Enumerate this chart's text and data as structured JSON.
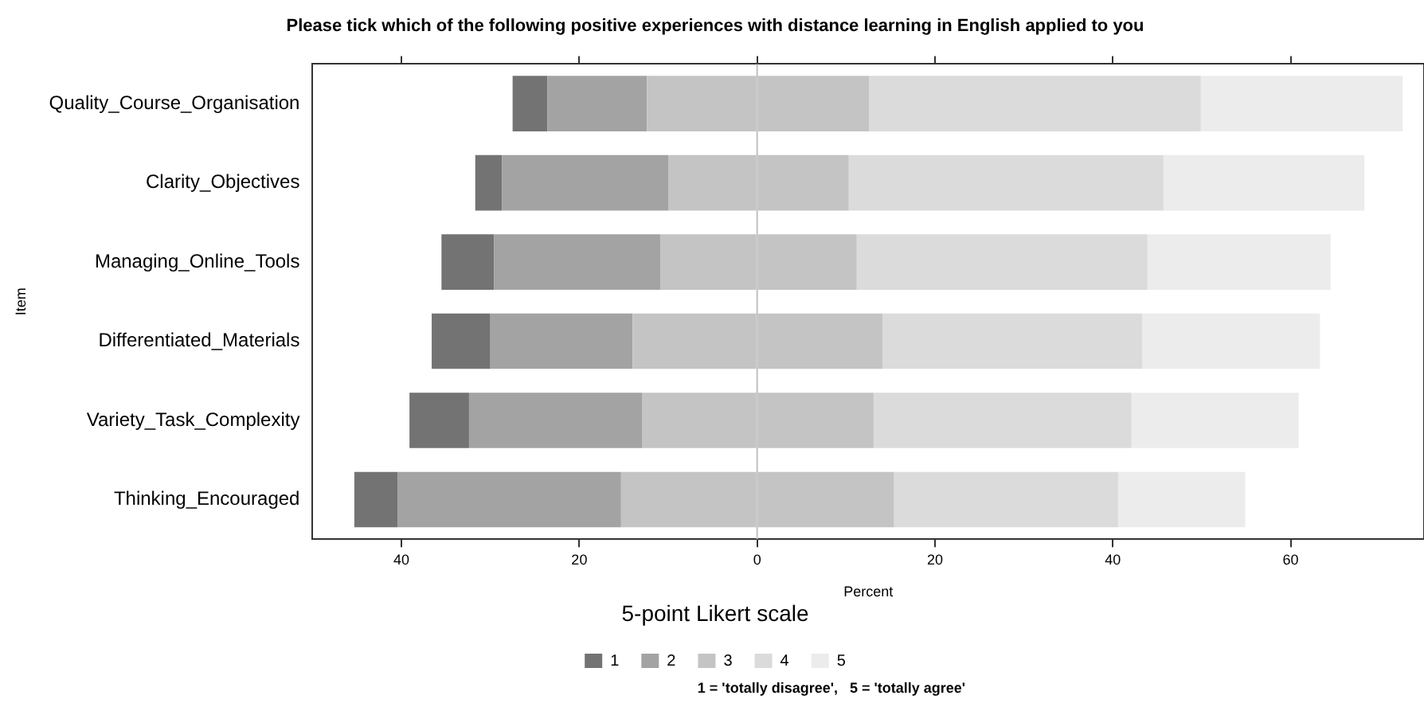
{
  "chart_data": {
    "type": "bar",
    "orientation": "horizontal",
    "stacked": true,
    "title": "Please tick which of the following positive experiences with distance learning in English applied to you",
    "xlabel": "Percent",
    "ylabel": "Item",
    "legend_title": "5-point Likert scale",
    "legend": "bottom",
    "grid": false,
    "categories": [
      "Quality_Course_Organisation",
      "Clarity_Objectives",
      "Managing_Online_Tools",
      "Differentiated_Materials",
      "Variety_Task_Complexity",
      "Thinking_Encouraged"
    ],
    "series": [
      {
        "name": "3",
        "color": "#c4c4c4",
        "values": [
          -12.4,
          -10.0,
          -10.9,
          -14.0,
          -12.9,
          -15.3
        ]
      },
      {
        "name": "2",
        "color": "#a3a3a3",
        "values": [
          -11.2,
          -18.7,
          -18.7,
          -16.0,
          -19.5,
          -25.1
        ]
      },
      {
        "name": "1",
        "color": "#737373",
        "values": [
          -3.9,
          -3.0,
          -5.9,
          -6.6,
          -6.7,
          -4.9
        ]
      },
      {
        "color": "#c4c4c4",
        "values": [
          12.6,
          10.3,
          11.2,
          14.1,
          13.1,
          15.4
        ]
      },
      {
        "name": "4",
        "color": "#dbdbdb",
        "values": [
          37.3,
          35.4,
          32.7,
          29.2,
          29.0,
          25.2
        ]
      },
      {
        "name": "5",
        "color": "#ececec",
        "values": [
          22.7,
          22.6,
          20.6,
          20.0,
          18.8,
          14.3
        ]
      }
    ],
    "xlim": [
      -50,
      75
    ],
    "xticks": [
      {
        "value": -40,
        "label": "40"
      },
      {
        "value": -20,
        "label": "20"
      },
      0,
      20,
      40,
      60
    ],
    "ref_lines": [
      {
        "axis": "x",
        "value": 0,
        "color": "#c0c0c0"
      }
    ],
    "annotations": [
      "1 = 'totally disagree',   5 = 'totally agree'"
    ]
  }
}
